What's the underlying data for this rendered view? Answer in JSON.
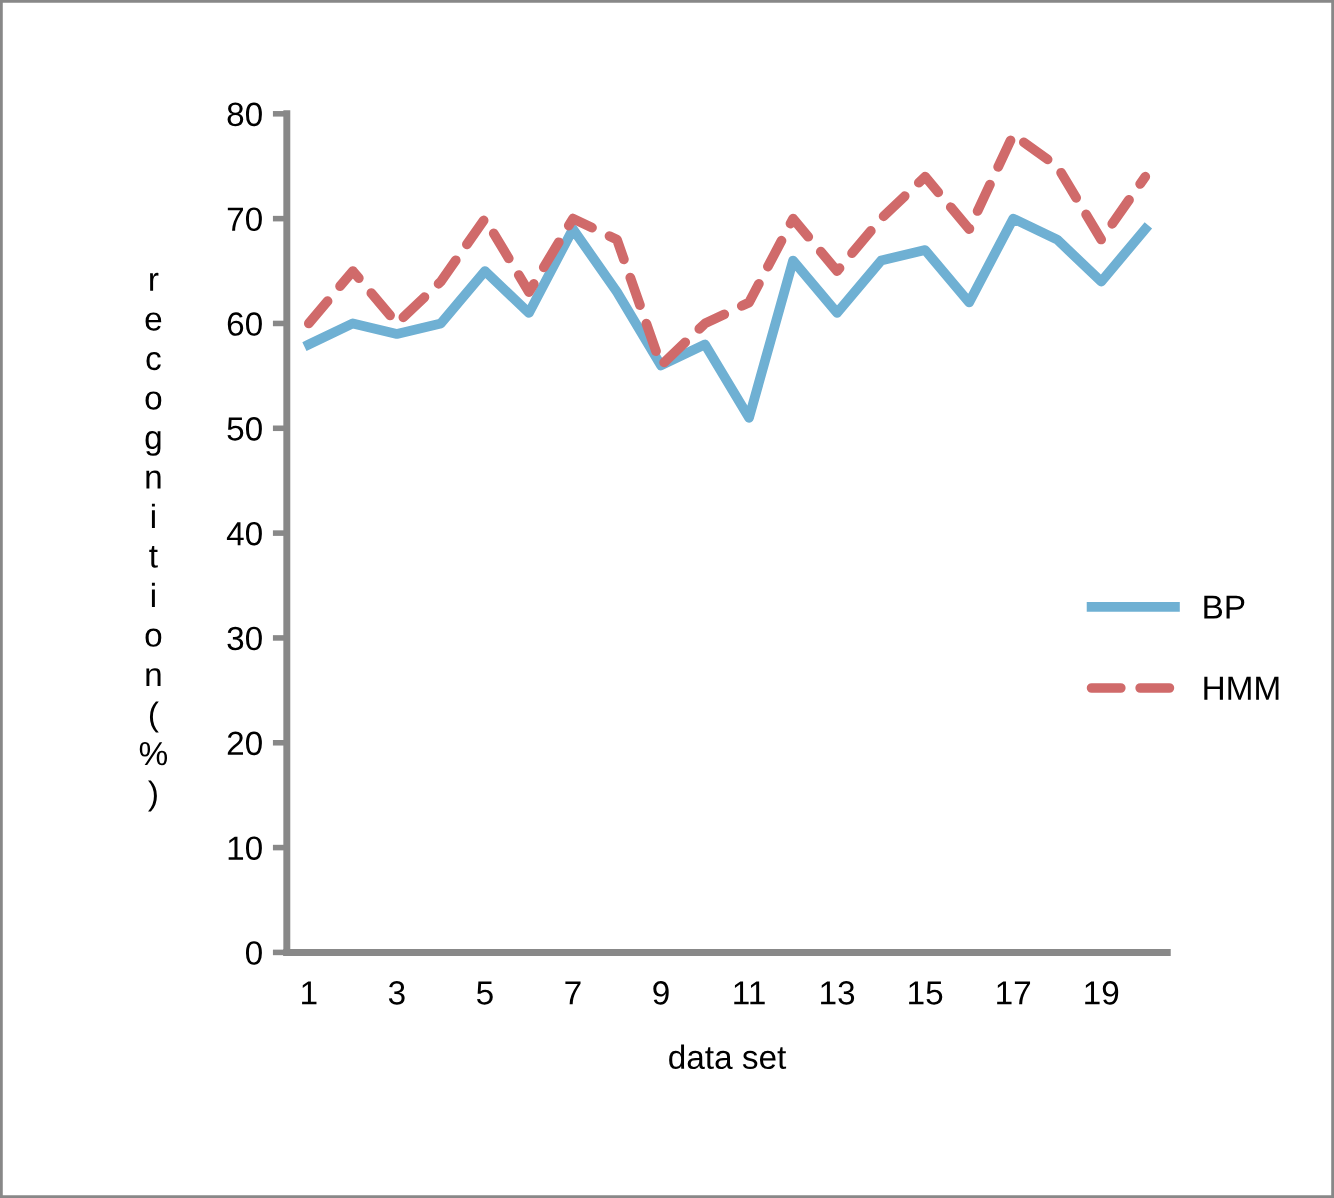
{
  "chart_data": {
    "type": "line",
    "xlabel": "data set",
    "ylabel": "recognition(%)",
    "categories": [
      "1",
      null,
      "3",
      null,
      "5",
      null,
      "7",
      null,
      "9",
      null,
      "11",
      null,
      "13",
      null,
      "15",
      null,
      "17",
      null,
      "19",
      null
    ],
    "series": [
      {
        "name": "BP",
        "color": "#6fb0d3",
        "line_style": "solid",
        "values": [
          58,
          60,
          59,
          60,
          65,
          61,
          69,
          63,
          56,
          58,
          51,
          66,
          61,
          66,
          67,
          62,
          70,
          68,
          64,
          69
        ]
      },
      {
        "name": "HMM",
        "color": "#d06a6a",
        "line_style": "dashed",
        "values": [
          60,
          65,
          60,
          64,
          70,
          63,
          70,
          68,
          56,
          60,
          62,
          70,
          65,
          70,
          74,
          69,
          78,
          75,
          68,
          74
        ]
      }
    ],
    "ylim": [
      0,
      80
    ],
    "yticks": [
      0,
      10,
      20,
      30,
      40,
      50,
      60,
      70,
      80
    ],
    "grid": false,
    "legend": "right",
    "marker": "none"
  }
}
